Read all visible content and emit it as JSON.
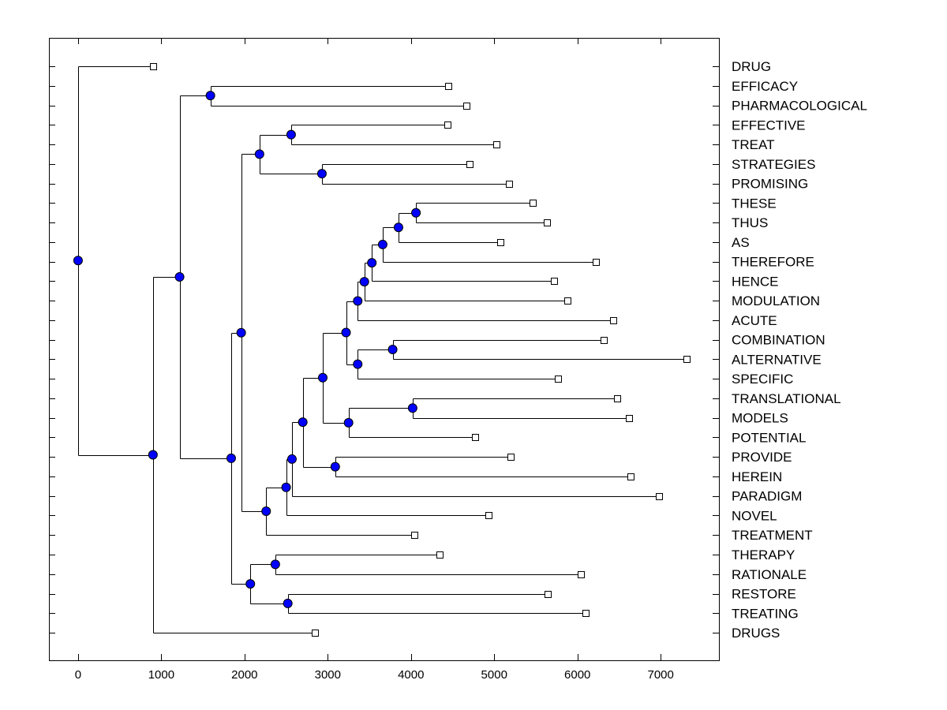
{
  "chart_data": {
    "type": "dendrogram",
    "title": "",
    "xlabel": "",
    "ylabel": "",
    "xlim": [
      -350,
      7700
    ],
    "xticks": [
      0,
      1000,
      2000,
      3000,
      4000,
      5000,
      6000,
      7000
    ],
    "leaves": [
      {
        "label": "DRUG",
        "x": 900
      },
      {
        "label": "EFFICACY",
        "x": 4450
      },
      {
        "label": "PHARMACOLOGICAL",
        "x": 4670
      },
      {
        "label": "EFFECTIVE",
        "x": 4440
      },
      {
        "label": "TREAT",
        "x": 5030
      },
      {
        "label": "STRATEGIES",
        "x": 4700
      },
      {
        "label": "PROMISING",
        "x": 5180
      },
      {
        "label": "THESE",
        "x": 5460
      },
      {
        "label": "THUS",
        "x": 5630
      },
      {
        "label": "AS",
        "x": 5070
      },
      {
        "label": "THEREFORE",
        "x": 6220
      },
      {
        "label": "HENCE",
        "x": 5720
      },
      {
        "label": "MODULATION",
        "x": 5880
      },
      {
        "label": "ACUTE",
        "x": 6430
      },
      {
        "label": "COMBINATION",
        "x": 6320
      },
      {
        "label": "ALTERNATIVE",
        "x": 7310
      },
      {
        "label": "SPECIFIC",
        "x": 5770
      },
      {
        "label": "TRANSLATIONAL",
        "x": 6480
      },
      {
        "label": "MODELS",
        "x": 6620
      },
      {
        "label": "POTENTIAL",
        "x": 4770
      },
      {
        "label": "PROVIDE",
        "x": 5200
      },
      {
        "label": "HEREIN",
        "x": 6640
      },
      {
        "label": "PARADIGM",
        "x": 6980
      },
      {
        "label": "NOVEL",
        "x": 4930
      },
      {
        "label": "TREATMENT",
        "x": 4040
      },
      {
        "label": "THERAPY",
        "x": 4340
      },
      {
        "label": "RATIONALE",
        "x": 6040
      },
      {
        "label": "RESTORE",
        "x": 5640
      },
      {
        "label": "TREATING",
        "x": 6100
      },
      {
        "label": "DRUGS",
        "x": 2850
      }
    ],
    "nodes": [
      {
        "id": "n1",
        "x": 1590,
        "children": [
          1,
          2
        ]
      },
      {
        "id": "n2",
        "x": 2560,
        "children": [
          3,
          4
        ]
      },
      {
        "id": "n3",
        "x": 2930,
        "children": [
          5,
          6
        ]
      },
      {
        "id": "n4",
        "x": 2180,
        "children": [
          "n2",
          "n3"
        ]
      },
      {
        "id": "n5",
        "x": 4060,
        "children": [
          7,
          8
        ]
      },
      {
        "id": "n6",
        "x": 3850,
        "children": [
          "n5",
          9
        ]
      },
      {
        "id": "n7",
        "x": 3660,
        "children": [
          "n6",
          10
        ]
      },
      {
        "id": "n8",
        "x": 3530,
        "children": [
          "n7",
          11
        ]
      },
      {
        "id": "n9",
        "x": 3440,
        "children": [
          "n8",
          12
        ]
      },
      {
        "id": "n10",
        "x": 3360,
        "children": [
          "n9",
          13
        ]
      },
      {
        "id": "n11",
        "x": 3780,
        "children": [
          14,
          15
        ]
      },
      {
        "id": "n12",
        "x": 3360,
        "children": [
          "n11",
          16
        ]
      },
      {
        "id": "n13",
        "x": 3220,
        "children": [
          "n10",
          "n12"
        ]
      },
      {
        "id": "n14",
        "x": 4020,
        "children": [
          17,
          18
        ]
      },
      {
        "id": "n15",
        "x": 3250,
        "children": [
          "n14",
          19
        ]
      },
      {
        "id": "n16",
        "x": 2940,
        "children": [
          "n13",
          "n15"
        ]
      },
      {
        "id": "n17",
        "x": 3090,
        "children": [
          20,
          21
        ]
      },
      {
        "id": "n18",
        "x": 2700,
        "children": [
          "n16",
          "n17"
        ]
      },
      {
        "id": "n19",
        "x": 2570,
        "children": [
          "n18",
          22
        ]
      },
      {
        "id": "n20",
        "x": 2500,
        "children": [
          "n19",
          23
        ]
      },
      {
        "id": "n21",
        "x": 2260,
        "children": [
          "n20",
          24
        ]
      },
      {
        "id": "n22",
        "x": 1960,
        "children": [
          "n4",
          "n21"
        ]
      },
      {
        "id": "n23",
        "x": 2370,
        "children": [
          25,
          26
        ]
      },
      {
        "id": "n24",
        "x": 2520,
        "children": [
          27,
          28
        ]
      },
      {
        "id": "n25",
        "x": 2070,
        "children": [
          "n23",
          "n24"
        ]
      },
      {
        "id": "n26",
        "x": 1840,
        "children": [
          "n22",
          "n25"
        ]
      },
      {
        "id": "n27",
        "x": 1220,
        "children": [
          "n1",
          "n26"
        ]
      },
      {
        "id": "n28",
        "x": 900,
        "children": [
          "n27",
          29
        ]
      },
      {
        "id": "n29",
        "x": 0,
        "children": [
          0,
          "n28"
        ]
      }
    ]
  },
  "colors": {
    "node_fill": "#0000ff",
    "line": "#000000",
    "background": "#ffffff"
  }
}
